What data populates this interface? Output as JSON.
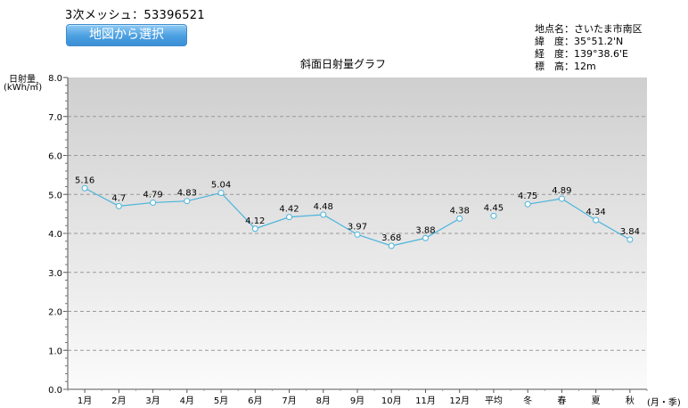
{
  "header": {
    "mesh_label": "3次メッシュ：",
    "mesh_code": "53396521",
    "map_button_label": "地図から選択"
  },
  "location": {
    "place_label": "地点名：",
    "place": "さいたま市南区",
    "lat_label": "緯　度：",
    "lat": "35°51.2'N",
    "lon_label": "経　度：",
    "lon": "139°38.6'E",
    "alt_label": "標　高：",
    "alt": "12m"
  },
  "chart_data": {
    "type": "line",
    "title": "斜面日射量グラフ",
    "ylabel_line1": "日射量",
    "ylabel_line2": "(kWh/㎡)",
    "xlabel": "(月・季)",
    "ylim": [
      0,
      8
    ],
    "y_ticks": [
      "0.0",
      "1.0",
      "2.0",
      "3.0",
      "4.0",
      "5.0",
      "6.0",
      "7.0",
      "8.0"
    ],
    "grid": true,
    "categories": [
      "1月",
      "2月",
      "3月",
      "4月",
      "5月",
      "6月",
      "7月",
      "8月",
      "9月",
      "10月",
      "11月",
      "12月",
      "平均",
      "冬",
      "春",
      "夏",
      "秋"
    ],
    "values": [
      5.16,
      4.7,
      4.79,
      4.83,
      5.04,
      4.12,
      4.42,
      4.48,
      3.97,
      3.68,
      3.88,
      4.38,
      4.45,
      4.75,
      4.89,
      4.34,
      3.84
    ],
    "data_labels": [
      "5.16",
      "4.7",
      "4.79",
      "4.83",
      "5.04",
      "4.12",
      "4.42",
      "4.48",
      "3.97",
      "3.68",
      "3.88",
      "4.38",
      "4.45",
      "4.75",
      "4.89",
      "4.34",
      "3.84"
    ],
    "line_segments": [
      [
        0,
        11
      ],
      [
        13,
        16
      ]
    ],
    "line_color": "#4ab4dc"
  }
}
